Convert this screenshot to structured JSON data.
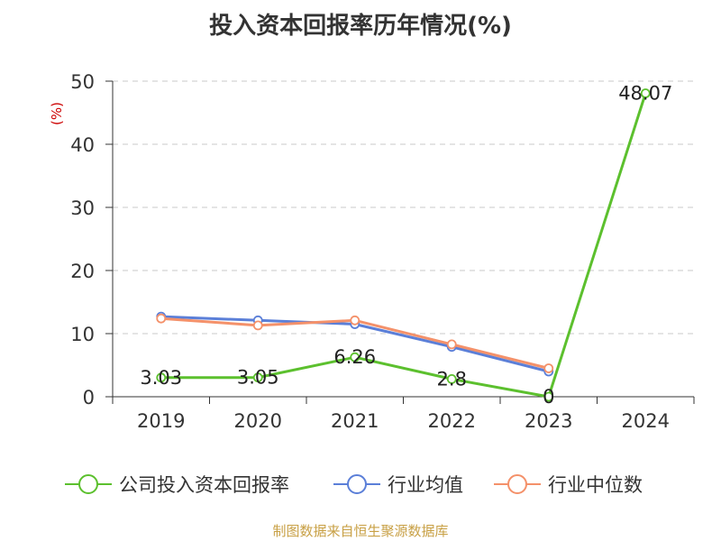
{
  "title": "投入资本回报率历年情况(%)",
  "source": "制图数据来自恒生聚源数据库",
  "chart_data": {
    "type": "line",
    "title": "投入资本回报率历年情况(%)",
    "ylabel": "(%)",
    "xlabel": "",
    "categories": [
      "2019",
      "2020",
      "2021",
      "2022",
      "2023",
      "2024"
    ],
    "ylim": [
      0,
      50
    ],
    "yticks": [
      0,
      10,
      20,
      30,
      40,
      50
    ],
    "grid": true,
    "legend_position": "bottom",
    "series": [
      {
        "name": "公司投入资本回报率",
        "color": "#5cc02e",
        "values": [
          3.03,
          3.05,
          6.26,
          2.8,
          0,
          48.07
        ],
        "labels": [
          "3.03",
          "3.05",
          "6.26",
          "2.8",
          "0",
          "48.07"
        ]
      },
      {
        "name": "行业均值",
        "color": "#5b7fd8",
        "values": [
          12.7,
          12.1,
          11.5,
          7.9,
          4.0,
          null
        ]
      },
      {
        "name": "行业中位数",
        "color": "#f4916a",
        "values": [
          12.4,
          11.3,
          12.1,
          8.3,
          4.5,
          null
        ]
      }
    ]
  }
}
